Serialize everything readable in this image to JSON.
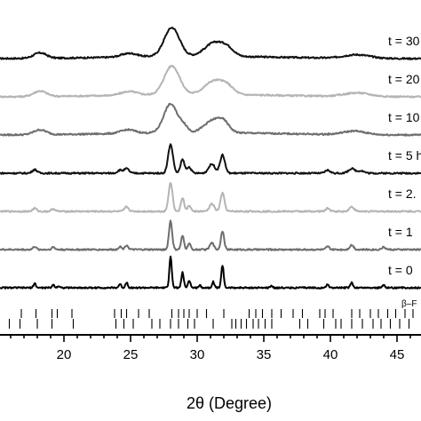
{
  "chart_data": {
    "type": "line",
    "xlabel": "2θ (Degree)",
    "xlim": [
      15.2,
      46.8
    ],
    "xticks": [
      20,
      25,
      30,
      35,
      40,
      45
    ],
    "ylabel": "",
    "grid": false,
    "series": [
      {
        "name": "t = 30",
        "color": "#111111",
        "baseline_level": 6,
        "broad": true,
        "peaks": [
          {
            "x": 18.2,
            "h": 0.18,
            "w": 0.8
          },
          {
            "x": 24.9,
            "h": 0.12,
            "w": 1.0
          },
          {
            "x": 28.1,
            "h": 0.95,
            "w": 0.95
          },
          {
            "x": 31.3,
            "h": 0.45,
            "w": 1.2
          },
          {
            "x": 32.3,
            "h": 0.2,
            "w": 0.8
          },
          {
            "x": 42.0,
            "h": 0.12,
            "w": 1.6
          }
        ]
      },
      {
        "name": "t = 20",
        "color": "#b4b4b4",
        "baseline_level": 5,
        "broad": true,
        "peaks": [
          {
            "x": 18.2,
            "h": 0.18,
            "w": 0.8
          },
          {
            "x": 24.9,
            "h": 0.12,
            "w": 1.0
          },
          {
            "x": 28.1,
            "h": 0.95,
            "w": 0.95
          },
          {
            "x": 31.3,
            "h": 0.45,
            "w": 1.2
          },
          {
            "x": 32.3,
            "h": 0.2,
            "w": 0.8
          },
          {
            "x": 42.0,
            "h": 0.12,
            "w": 1.6
          }
        ]
      },
      {
        "name": "t = 10",
        "color": "#6e6e6e",
        "baseline_level": 4,
        "broad": true,
        "peaks": [
          {
            "x": 18.2,
            "h": 0.16,
            "w": 0.8
          },
          {
            "x": 24.8,
            "h": 0.12,
            "w": 0.9
          },
          {
            "x": 28.0,
            "h": 0.95,
            "w": 0.85
          },
          {
            "x": 29.0,
            "h": 0.2,
            "w": 0.5
          },
          {
            "x": 31.2,
            "h": 0.4,
            "w": 1.1
          },
          {
            "x": 32.0,
            "h": 0.25,
            "w": 0.7
          },
          {
            "x": 41.8,
            "h": 0.12,
            "w": 1.4
          }
        ]
      },
      {
        "name": "t = 5 h",
        "color": "#111111",
        "baseline_level": 3,
        "broad": false,
        "peaks": [
          {
            "x": 17.8,
            "h": 0.12,
            "w": 0.3
          },
          {
            "x": 24.2,
            "h": 0.1,
            "w": 0.3
          },
          {
            "x": 24.7,
            "h": 0.15,
            "w": 0.3
          },
          {
            "x": 28.0,
            "h": 0.95,
            "w": 0.3
          },
          {
            "x": 28.9,
            "h": 0.45,
            "w": 0.25
          },
          {
            "x": 29.4,
            "h": 0.2,
            "w": 0.25
          },
          {
            "x": 31.1,
            "h": 0.3,
            "w": 0.4
          },
          {
            "x": 31.9,
            "h": 0.6,
            "w": 0.3
          },
          {
            "x": 39.8,
            "h": 0.1,
            "w": 0.3
          },
          {
            "x": 41.6,
            "h": 0.15,
            "w": 0.4
          },
          {
            "x": 42.3,
            "h": 0.08,
            "w": 0.4
          }
        ]
      },
      {
        "name": "t = 2.",
        "color": "#b4b4b4",
        "baseline_level": 2,
        "broad": false,
        "peaks": [
          {
            "x": 17.8,
            "h": 0.1,
            "w": 0.25
          },
          {
            "x": 19.2,
            "h": 0.08,
            "w": 0.25
          },
          {
            "x": 24.7,
            "h": 0.15,
            "w": 0.25
          },
          {
            "x": 28.0,
            "h": 0.95,
            "w": 0.25
          },
          {
            "x": 28.9,
            "h": 0.45,
            "w": 0.2
          },
          {
            "x": 29.4,
            "h": 0.2,
            "w": 0.2
          },
          {
            "x": 31.1,
            "h": 0.25,
            "w": 0.3
          },
          {
            "x": 31.9,
            "h": 0.6,
            "w": 0.25
          },
          {
            "x": 39.8,
            "h": 0.1,
            "w": 0.25
          },
          {
            "x": 41.6,
            "h": 0.15,
            "w": 0.3
          }
        ]
      },
      {
        "name": "t = 1",
        "color": "#6e6e6e",
        "baseline_level": 1,
        "broad": false,
        "peaks": [
          {
            "x": 17.8,
            "h": 0.1,
            "w": 0.2
          },
          {
            "x": 19.2,
            "h": 0.08,
            "w": 0.2
          },
          {
            "x": 24.2,
            "h": 0.1,
            "w": 0.2
          },
          {
            "x": 24.7,
            "h": 0.15,
            "w": 0.2
          },
          {
            "x": 28.0,
            "h": 0.95,
            "w": 0.2
          },
          {
            "x": 28.9,
            "h": 0.45,
            "w": 0.18
          },
          {
            "x": 29.4,
            "h": 0.2,
            "w": 0.18
          },
          {
            "x": 31.1,
            "h": 0.22,
            "w": 0.25
          },
          {
            "x": 31.9,
            "h": 0.62,
            "w": 0.2
          },
          {
            "x": 39.8,
            "h": 0.1,
            "w": 0.2
          },
          {
            "x": 41.6,
            "h": 0.15,
            "w": 0.25
          },
          {
            "x": 44.0,
            "h": 0.08,
            "w": 0.25
          }
        ]
      },
      {
        "name": "t = 0",
        "color": "#000000",
        "baseline_level": 0,
        "broad": false,
        "peaks": [
          {
            "x": 17.8,
            "h": 0.15,
            "w": 0.15
          },
          {
            "x": 19.2,
            "h": 0.1,
            "w": 0.15
          },
          {
            "x": 19.6,
            "h": 0.06,
            "w": 0.15
          },
          {
            "x": 24.2,
            "h": 0.12,
            "w": 0.15
          },
          {
            "x": 24.7,
            "h": 0.18,
            "w": 0.15
          },
          {
            "x": 28.0,
            "h": 1.05,
            "w": 0.15
          },
          {
            "x": 28.9,
            "h": 0.5,
            "w": 0.15
          },
          {
            "x": 29.4,
            "h": 0.25,
            "w": 0.15
          },
          {
            "x": 30.2,
            "h": 0.08,
            "w": 0.15
          },
          {
            "x": 31.2,
            "h": 0.2,
            "w": 0.15
          },
          {
            "x": 31.9,
            "h": 0.75,
            "w": 0.15
          },
          {
            "x": 35.6,
            "h": 0.06,
            "w": 0.15
          },
          {
            "x": 39.8,
            "h": 0.12,
            "w": 0.15
          },
          {
            "x": 41.6,
            "h": 0.18,
            "w": 0.15
          },
          {
            "x": 44.0,
            "h": 0.1,
            "w": 0.15
          }
        ]
      }
    ],
    "reference_patterns": [
      {
        "label": "β–F",
        "positions": [
          16.8,
          17.9,
          19.1,
          19.5,
          20.6,
          23.8,
          24.3,
          24.7,
          25.6,
          26.4,
          28.1,
          28.6,
          29.0,
          29.4,
          30.0,
          30.7,
          32.0,
          33.9,
          34.4,
          34.9,
          35.6,
          36.3,
          37.2,
          37.9,
          39.2,
          39.6,
          40.2,
          41.6,
          42.2,
          43.0,
          43.6,
          44.3,
          44.9,
          45.6,
          46.2
        ]
      },
      {
        "label": "",
        "positions": [
          15.9,
          16.7,
          18.0,
          19.1,
          20.7,
          23.9,
          24.5,
          25.2,
          26.6,
          27.2,
          28.0,
          28.6,
          29.3,
          29.8,
          31.2,
          32.6,
          32.9,
          33.3,
          33.7,
          34.2,
          34.6,
          35.1,
          35.6,
          37.7,
          38.3,
          39.5,
          40.4,
          40.8,
          41.6,
          42.4,
          43.2,
          43.8,
          44.5,
          45.2,
          45.9
        ]
      }
    ]
  }
}
